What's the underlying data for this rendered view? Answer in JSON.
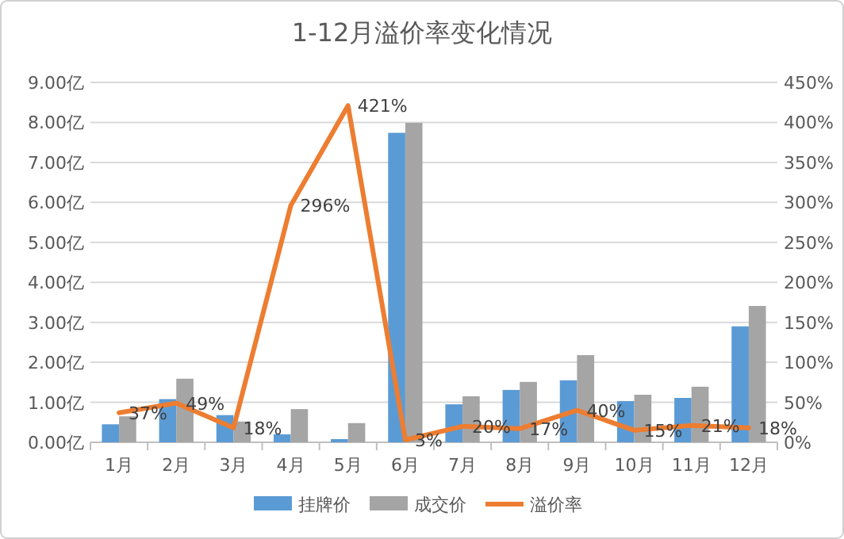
{
  "chart_data": {
    "type": "bar",
    "title": "1-12月溢价率变化情况",
    "categories": [
      "1月",
      "2月",
      "3月",
      "4月",
      "5月",
      "6月",
      "7月",
      "8月",
      "9月",
      "10月",
      "11月",
      "12月"
    ],
    "series": [
      {
        "name": "挂牌价",
        "color": "#5b9bd5",
        "values": [
          0.45,
          1.08,
          0.68,
          0.2,
          0.08,
          7.74,
          0.95,
          1.31,
          1.55,
          1.03,
          1.11,
          2.9
        ]
      },
      {
        "name": "成交价",
        "color": "#a5a5a5",
        "values": [
          0.65,
          1.59,
          0.52,
          0.83,
          0.48,
          7.99,
          1.15,
          1.51,
          2.18,
          1.19,
          1.39,
          3.41
        ]
      },
      {
        "name": "溢价率",
        "color": "#ed7d31",
        "type": "line",
        "axis": "y2",
        "values": [
          37,
          49,
          18,
          296,
          421,
          3,
          20,
          17,
          40,
          15,
          21,
          18
        ],
        "value_labels": [
          "37%",
          "49%",
          "18%",
          "296%",
          "421%",
          "3%",
          "20%",
          "17%",
          "40%",
          "15%",
          "21%",
          "18%"
        ]
      }
    ],
    "ylim": [
      0,
      9
    ],
    "yticks": [
      {
        "value": 0,
        "label": "0.00亿"
      },
      {
        "value": 1,
        "label": "1.00亿"
      },
      {
        "value": 2,
        "label": "2.00亿"
      },
      {
        "value": 3,
        "label": "3.00亿"
      },
      {
        "value": 4,
        "label": "4.00亿"
      },
      {
        "value": 5,
        "label": "5.00亿"
      },
      {
        "value": 6,
        "label": "6.00亿"
      },
      {
        "value": 7,
        "label": "7.00亿"
      },
      {
        "value": 8,
        "label": "8.00亿"
      },
      {
        "value": 9,
        "label": "9.00亿"
      }
    ],
    "y2lim": [
      0,
      450
    ],
    "y2ticks": [
      {
        "value": 0,
        "label": "0%"
      },
      {
        "value": 50,
        "label": "50%"
      },
      {
        "value": 100,
        "label": "100%"
      },
      {
        "value": 150,
        "label": "150%"
      },
      {
        "value": 200,
        "label": "200%"
      },
      {
        "value": 250,
        "label": "250%"
      },
      {
        "value": 300,
        "label": "300%"
      },
      {
        "value": 350,
        "label": "350%"
      },
      {
        "value": 400,
        "label": "400%"
      },
      {
        "value": 450,
        "label": "450%"
      }
    ],
    "grid": "y",
    "legend": "bottom"
  }
}
